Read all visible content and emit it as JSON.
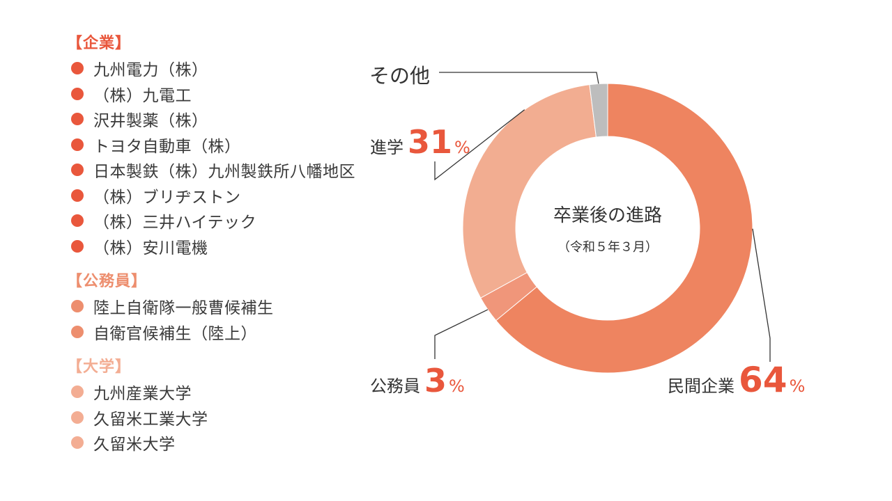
{
  "colors": {
    "corporate": "#e9573c",
    "civil": "#ed8e6e",
    "university": "#f3ad93",
    "other": "#bdbdbd",
    "slice_corporate": "#ee8460",
    "slice_civil": "#f0967a",
    "slice_university": "#f2ad91",
    "slice_other": "#bdbdbd",
    "leader": "#333333"
  },
  "legend": {
    "groups": [
      {
        "title": "【企業】",
        "color_key": "corporate",
        "items": [
          "九州電力（株）",
          "（株）九電工",
          "沢井製薬（株）",
          "トヨタ自動車（株）",
          "日本製鉄（株）九州製鉄所八幡地区",
          "（株）ブリヂストン",
          "（株）三井ハイテック",
          "（株）安川電機"
        ]
      },
      {
        "title": "【公務員】",
        "color_key": "civil",
        "items": [
          "陸上自衛隊一般曹候補生",
          "自衛官候補生（陸上）"
        ]
      },
      {
        "title": "【大学】",
        "color_key": "university",
        "items": [
          "九州産業大学",
          "久留米工業大学",
          "久留米大学"
        ]
      }
    ]
  },
  "chart_data": {
    "type": "pie",
    "title": "卒業後の進路",
    "subtitle": "（令和５年３月）",
    "slices": [
      {
        "label": "民間企業",
        "value": 64,
        "value_text": "64",
        "unit": "%",
        "color_key": "slice_corporate"
      },
      {
        "label": "公務員",
        "value": 3,
        "value_text": "3",
        "unit": "%",
        "color_key": "slice_civil"
      },
      {
        "label": "進学",
        "value": 31,
        "value_text": "31",
        "unit": "%",
        "color_key": "slice_university"
      },
      {
        "label": "その他",
        "value": 2,
        "value_text": "",
        "unit": "",
        "color_key": "slice_other"
      }
    ]
  }
}
